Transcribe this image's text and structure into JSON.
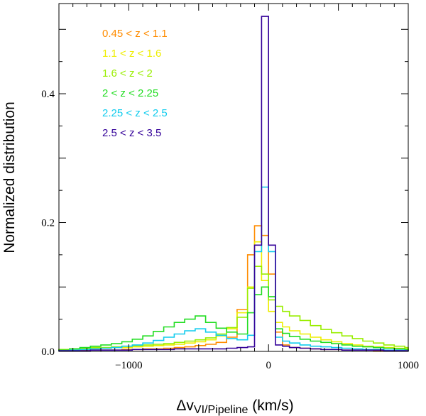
{
  "chart_data": {
    "type": "line",
    "style": "step-histogram",
    "title": "",
    "ylabel": "Normalized distribution",
    "xlabel_main": "Δv",
    "xlabel_sub": "VI/Pipeline",
    "xlabel_unit": "(km/s)",
    "xlim": [
      -1500,
      1000
    ],
    "ylim": [
      0,
      0.54
    ],
    "x_ticks": [
      -1000,
      0,
      1000
    ],
    "x_tick_labels": [
      "−1000",
      "0",
      "1000"
    ],
    "y_ticks": [
      0,
      0.2,
      0.4
    ],
    "y_tick_labels": [
      "0.0",
      "0.2",
      "0.4"
    ],
    "legend_position": "top-left",
    "bin_edges": [
      -1500,
      -1425,
      -1350,
      -1275,
      -1200,
      -1125,
      -1050,
      -975,
      -900,
      -825,
      -750,
      -675,
      -600,
      -525,
      -450,
      -375,
      -300,
      -225,
      -150,
      -100,
      -50,
      0,
      50,
      100,
      150,
      225,
      300,
      375,
      450,
      525,
      600,
      675,
      750,
      825,
      900,
      975,
      1000
    ],
    "series": [
      {
        "name": "0.45 < z < 1.1",
        "color": "#ff8c00",
        "values": [
          0.001,
          0.001,
          0.002,
          0.002,
          0.002,
          0.002,
          0.003,
          0.003,
          0.004,
          0.004,
          0.005,
          0.006,
          0.007,
          0.009,
          0.011,
          0.014,
          0.022,
          0.065,
          0.15,
          0.195,
          0.18,
          0.12,
          0.03,
          0.01,
          0.006,
          0.005,
          0.004,
          0.003,
          0.003,
          0.002,
          0.002,
          0.002,
          0.001,
          0.001,
          0.001,
          0.001
        ]
      },
      {
        "name": "1.1 < z < 1.6",
        "color": "#eeee00",
        "values": [
          0.003,
          0.004,
          0.004,
          0.005,
          0.005,
          0.006,
          0.006,
          0.007,
          0.008,
          0.009,
          0.01,
          0.011,
          0.013,
          0.015,
          0.018,
          0.024,
          0.035,
          0.06,
          0.1,
          0.17,
          0.11,
          0.062,
          0.045,
          0.038,
          0.032,
          0.027,
          0.022,
          0.018,
          0.015,
          0.012,
          0.01,
          0.008,
          0.007,
          0.006,
          0.005,
          0.004
        ]
      },
      {
        "name": "1.6 < z < 2",
        "color": "#99ee00",
        "values": [
          0.003,
          0.004,
          0.005,
          0.006,
          0.006,
          0.007,
          0.008,
          0.009,
          0.01,
          0.011,
          0.012,
          0.014,
          0.016,
          0.018,
          0.021,
          0.027,
          0.037,
          0.053,
          0.098,
          0.132,
          0.12,
          0.08,
          0.07,
          0.062,
          0.055,
          0.048,
          0.04,
          0.034,
          0.029,
          0.024,
          0.02,
          0.016,
          0.013,
          0.01,
          0.008,
          0.006
        ]
      },
      {
        "name": "2 < z < 2.25",
        "color": "#22dd22",
        "values": [
          0.002,
          0.004,
          0.006,
          0.008,
          0.01,
          0.012,
          0.015,
          0.019,
          0.024,
          0.031,
          0.038,
          0.045,
          0.05,
          0.055,
          0.045,
          0.036,
          0.03,
          0.027,
          0.06,
          0.088,
          0.1,
          0.085,
          0.035,
          0.028,
          0.023,
          0.019,
          0.016,
          0.014,
          0.012,
          0.01,
          0.008,
          0.007,
          0.006,
          0.005,
          0.004,
          0.003
        ]
      },
      {
        "name": "2.25 < z < 2.5",
        "color": "#11ccee",
        "values": [
          0.001,
          0.002,
          0.003,
          0.004,
          0.005,
          0.006,
          0.008,
          0.01,
          0.013,
          0.017,
          0.022,
          0.027,
          0.032,
          0.035,
          0.03,
          0.025,
          0.02,
          0.018,
          0.025,
          0.155,
          0.255,
          0.155,
          0.022,
          0.016,
          0.013,
          0.01,
          0.008,
          0.007,
          0.006,
          0.005,
          0.004,
          0.003,
          0.003,
          0.002,
          0.002,
          0.001
        ]
      },
      {
        "name": "2.5 < z < 3.5",
        "color": "#330099",
        "values": [
          0.001,
          0.001,
          0.001,
          0.002,
          0.002,
          0.002,
          0.002,
          0.003,
          0.003,
          0.003,
          0.003,
          0.004,
          0.004,
          0.004,
          0.004,
          0.004,
          0.005,
          0.006,
          0.007,
          0.165,
          0.52,
          0.165,
          0.01,
          0.008,
          0.006,
          0.005,
          0.004,
          0.003,
          0.003,
          0.002,
          0.002,
          0.002,
          0.002,
          0.001,
          0.001,
          0.001
        ]
      }
    ]
  }
}
